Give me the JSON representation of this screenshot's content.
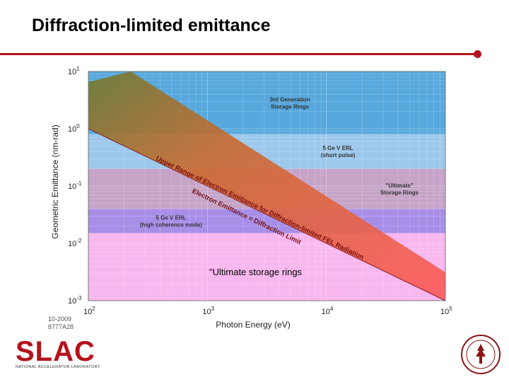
{
  "slide": {
    "title": "Diffraction-limited emittance"
  },
  "chart_data": {
    "type": "line",
    "title": "",
    "xlabel": "Photon Energy  (eV)",
    "ylabel": "Geometric Emittance  (nm-rad)",
    "x_scale": "log",
    "y_scale": "log",
    "xlim": [
      100,
      100000
    ],
    "ylim": [
      0.001,
      10
    ],
    "x_ticks": [
      {
        "base": "10",
        "exp": "2"
      },
      {
        "base": "10",
        "exp": "3"
      },
      {
        "base": "10",
        "exp": "4"
      },
      {
        "base": "10",
        "exp": "5"
      }
    ],
    "y_ticks": [
      {
        "base": "10",
        "exp": "-3"
      },
      {
        "base": "10",
        "exp": "-2"
      },
      {
        "base": "10",
        "exp": "-1"
      },
      {
        "base": "10",
        "exp": "0"
      },
      {
        "base": "10",
        "exp": "1"
      }
    ],
    "grid": true,
    "series": [
      {
        "x": [
          100,
          100000
        ],
        "y": [
          1.0,
          0.001
        ]
      }
    ],
    "bands": [
      {
        "label_lines": [
          "3rd Generation",
          "Storage Rings"
        ],
        "y_range": [
          0.8,
          10
        ],
        "color": "#56a8dd"
      },
      {
        "label_lines": [
          "5 Ge V ERL",
          "(short pulse)"
        ],
        "y_range": [
          0.2,
          0.8
        ],
        "color": "#9cc8ec"
      },
      {
        "label_lines": [
          "\"Ultimate\"",
          "Storage Rings"
        ],
        "y_range": [
          0.04,
          0.2
        ],
        "color": "#c6a4c8"
      },
      {
        "label_lines": [
          "5 Ge V ERL",
          "(high coherence mode)"
        ],
        "y_range": [
          0.015,
          0.04
        ],
        "color": "#a78fe8"
      },
      {
        "label_lines": [],
        "y_range": [
          0.001,
          0.015
        ],
        "color": "#f9b7ef"
      }
    ],
    "annotations": [
      "Upper Range of Electron Emittance for Diffraction-limited FEL Radiation",
      "Electron Emittance = Diffraction Limit"
    ],
    "overlay_text": "\"Ultimate storage rings"
  },
  "figure_code": {
    "line1": "10-2009",
    "line2": "8777A28"
  },
  "logo": {
    "text": "SLAC",
    "subtitle": "NATIONAL ACCELERATOR LABORATORY"
  },
  "colors": {
    "accent": "#b5121b",
    "line_gradient_start": "#6e7d37",
    "line_gradient_end": "#ff5a5a"
  },
  "icons": {
    "seal": "stanford-seal-icon"
  }
}
